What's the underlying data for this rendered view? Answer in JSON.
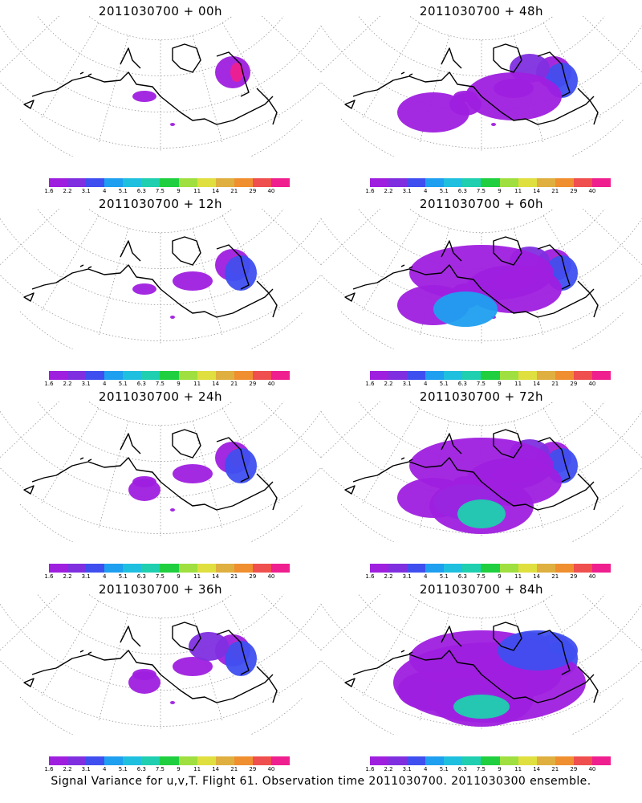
{
  "panels": [
    {
      "title": "2011030700 + 00h",
      "level": 0
    },
    {
      "title": "2011030700 + 48h",
      "level": 4
    },
    {
      "title": "2011030700 + 12h",
      "level": 1
    },
    {
      "title": "2011030700 + 60h",
      "level": 5
    },
    {
      "title": "2011030700 + 24h",
      "level": 2
    },
    {
      "title": "2011030700 + 72h",
      "level": 6
    },
    {
      "title": "2011030700 + 36h",
      "level": 3
    },
    {
      "title": "2011030700 + 84h",
      "level": 7
    }
  ],
  "colorbar": {
    "labels": [
      "1.6",
      "2.2",
      "3.1",
      "4",
      "5.1",
      "6.3",
      "7.5",
      "9",
      "11",
      "14",
      "21",
      "29",
      "40"
    ],
    "colors": [
      "#9f1fdf",
      "#7f2fdf",
      "#3f4fef",
      "#1f9fef",
      "#1fbfdf",
      "#1fcfaf",
      "#1fcf3f",
      "#9fdf3f",
      "#dfdf3f",
      "#dfaf3f",
      "#ef8f2f",
      "#ef4f4f",
      "#ef1f8f"
    ]
  },
  "footer": "Signal Variance for u,v,T. Flight 61. Observation time 2011030700. 2011030300 ensemble."
}
